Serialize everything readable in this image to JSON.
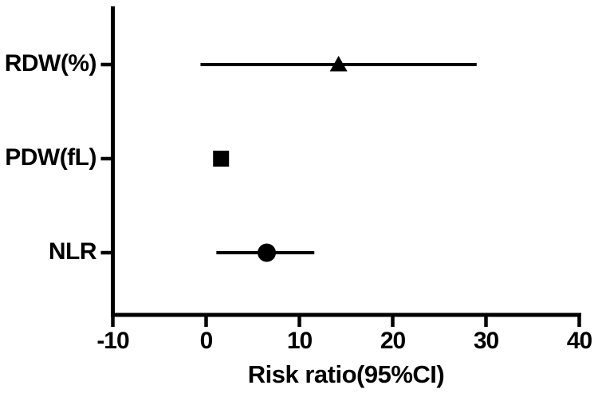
{
  "chart_data": {
    "type": "scatter",
    "subtype": "forest-plot",
    "title": "",
    "xlabel": "Risk ratio(95%CI)",
    "ylabel": "",
    "xlim": [
      -10,
      40
    ],
    "x_ticks": [
      -10,
      0,
      10,
      20,
      30,
      40
    ],
    "x_tick_labels": [
      "-10",
      "0",
      "10",
      "20",
      "30",
      "40"
    ],
    "grid": false,
    "legend": false,
    "categories": [
      "RDW(%)",
      "PDW(fL)",
      "NLR"
    ],
    "series": [
      {
        "label": "RDW(%)",
        "marker": "triangle",
        "estimate": 14.2,
        "ci_lower": -0.6,
        "ci_upper": 29.0
      },
      {
        "label": "PDW(fL)",
        "marker": "square",
        "estimate": 1.6,
        "ci_lower": null,
        "ci_upper": null
      },
      {
        "label": "NLR",
        "marker": "circle",
        "estimate": 6.5,
        "ci_lower": 1.1,
        "ci_upper": 11.6
      }
    ],
    "colors": {
      "axis": "#000000",
      "marker": "#000000",
      "ci_line": "#000000",
      "text": "#000000",
      "background": "#ffffff"
    }
  }
}
